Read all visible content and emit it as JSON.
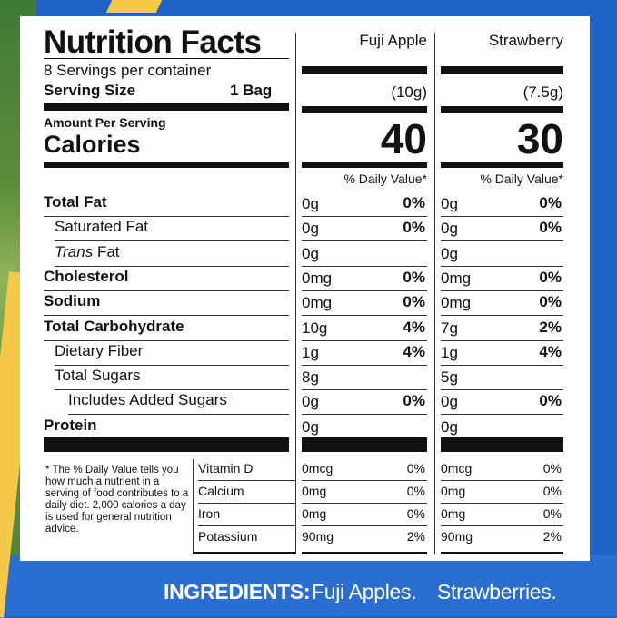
{
  "label": {
    "title": "Nutrition Facts",
    "servings_per_container": "8 Servings per container",
    "serving_size_label": "Serving Size",
    "serving_size_value": "1 Bag",
    "amount_per_serving": "Amount Per Serving",
    "calories_label": "Calories",
    "dv_header": "% Daily Value*"
  },
  "products": [
    {
      "name": "Fuji Apple",
      "serving": "(10g)",
      "calories": "40"
    },
    {
      "name": "Strawberry",
      "serving": "(7.5g)",
      "calories": "30"
    }
  ],
  "nutrients": [
    {
      "label": "Total Fat",
      "bold": true,
      "values": [
        {
          "amt": "0g",
          "pct": "0%"
        },
        {
          "amt": "0g",
          "pct": "0%"
        }
      ]
    },
    {
      "label": "Saturated Fat",
      "bold": false,
      "values": [
        {
          "amt": "0g",
          "pct": "0%"
        },
        {
          "amt": "0g",
          "pct": "0%"
        }
      ]
    },
    {
      "label_prefix": "Trans",
      "label": "Fat",
      "bold": false,
      "values": [
        {
          "amt": "0g",
          "pct": ""
        },
        {
          "amt": "0g",
          "pct": ""
        }
      ]
    },
    {
      "label": "Cholesterol",
      "bold": true,
      "values": [
        {
          "amt": "0mg",
          "pct": "0%"
        },
        {
          "amt": "0mg",
          "pct": "0%"
        }
      ]
    },
    {
      "label": "Sodium",
      "bold": true,
      "values": [
        {
          "amt": "0mg",
          "pct": "0%"
        },
        {
          "amt": "0mg",
          "pct": "0%"
        }
      ]
    },
    {
      "label": "Total Carbohydrate",
      "bold": true,
      "values": [
        {
          "amt": "10g",
          "pct": "4%"
        },
        {
          "amt": "7g",
          "pct": "2%"
        }
      ]
    },
    {
      "label": "Dietary Fiber",
      "bold": false,
      "values": [
        {
          "amt": "1g",
          "pct": "4%"
        },
        {
          "amt": "1g",
          "pct": "4%"
        }
      ]
    },
    {
      "label": "Total Sugars",
      "bold": false,
      "values": [
        {
          "amt": "8g",
          "pct": ""
        },
        {
          "amt": "5g",
          "pct": ""
        }
      ]
    },
    {
      "label": "Includes Added Sugars",
      "bold": false,
      "values": [
        {
          "amt": "0g",
          "pct": "0%"
        },
        {
          "amt": "0g",
          "pct": "0%"
        }
      ]
    },
    {
      "label": "Protein",
      "bold": true,
      "values": [
        {
          "amt": "0g",
          "pct": ""
        },
        {
          "amt": "0g",
          "pct": ""
        }
      ]
    }
  ],
  "footnote": "* The % Daily Value tells you how much a nutrient in a serving of food contributes to a daily diet. 2,000 calories a day is used for general nutrition advice.",
  "vitamins": [
    {
      "label": "Vitamin D",
      "values": [
        {
          "amt": "0mcg",
          "pct": "0%"
        },
        {
          "amt": "0mcg",
          "pct": "0%"
        }
      ]
    },
    {
      "label": "Calcium",
      "values": [
        {
          "amt": "0mg",
          "pct": "0%"
        },
        {
          "amt": "0mg",
          "pct": "0%"
        }
      ]
    },
    {
      "label": "Iron",
      "values": [
        {
          "amt": "0mg",
          "pct": "0%"
        },
        {
          "amt": "0mg",
          "pct": "0%"
        }
      ]
    },
    {
      "label": "Potassium",
      "values": [
        {
          "amt": "90mg",
          "pct": "2%"
        },
        {
          "amt": "90mg",
          "pct": "2%"
        }
      ]
    }
  ],
  "ingredients": {
    "label": "INGREDIENTS:",
    "items": [
      "Fuji Apples.",
      "Strawberries."
    ]
  },
  "colors": {
    "background": "#1f63c4",
    "panel": "#ffffff",
    "rule": "#111111"
  }
}
